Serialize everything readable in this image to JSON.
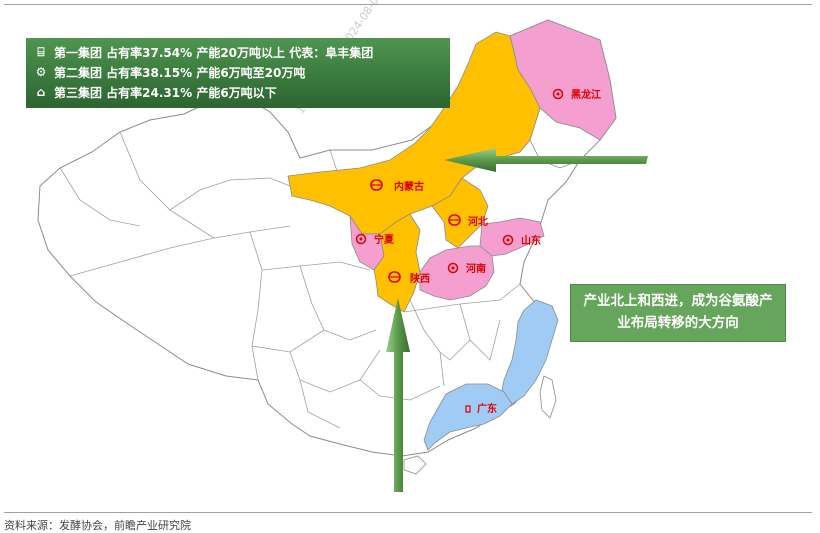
{
  "legend": {
    "rows": [
      {
        "icon": "pot-icon",
        "glyph": "⌸",
        "text": "第一集团 占有率37.54% 产能20万吨以上 代表：阜丰集团"
      },
      {
        "icon": "gear-icon",
        "glyph": "⚙",
        "text": "第二集团 占有率38.15% 产能6万吨至20万吨"
      },
      {
        "icon": "flask-icon",
        "glyph": "⌂",
        "text": "第三集团 占有率24.31% 产能6万吨以下"
      }
    ]
  },
  "provinces": {
    "heilongjiang": {
      "name": "黑龙江",
      "group": 2,
      "color": "#f49fd0"
    },
    "neimenggu": {
      "name": "内蒙古",
      "group": 1,
      "color": "#ffc000"
    },
    "ningxia": {
      "name": "宁夏",
      "group": 2,
      "color": "#f49fd0"
    },
    "hebei": {
      "name": "河北",
      "group": 1,
      "color": "#ffc000"
    },
    "shandong": {
      "name": "山东",
      "group": 2,
      "color": "#f49fd0"
    },
    "henan": {
      "name": "河南",
      "group": 2,
      "color": "#f49fd0"
    },
    "shaanxi": {
      "name": "陕西",
      "group": 1,
      "color": "#ffc000"
    },
    "guangdong": {
      "name": "广东",
      "group": 3,
      "color": "#9fcbf5"
    }
  },
  "callout": {
    "text": "产业北上和西进，成为谷氨酸产业布局转移的大方向"
  },
  "source": {
    "text": "资料来源：发酵协会，前瞻产业研究院"
  },
  "watermark": {
    "text": "1053321346于2024-08-01下载"
  }
}
